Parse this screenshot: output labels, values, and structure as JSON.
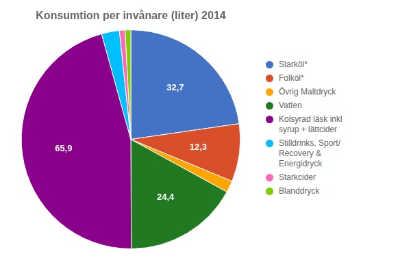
{
  "chart_data": {
    "type": "pie",
    "title": "Konsumtion per invånare (liter) 2014",
    "categories": [
      "Starköl*",
      "Folköl*",
      "Övrig Maltdryck",
      "Vatten",
      "Kolsyrad läsk inkl\nsyrup + lättcider",
      "Stilldrinks, Sport/\nRecovery &\nEnergidryck",
      "Starkcider",
      "Blanddryck"
    ],
    "values": [
      32.7,
      12.3,
      2.5,
      24.4,
      65.9,
      3.8,
      1.2,
      1.2
    ],
    "value_labels": [
      "32,7",
      "12,3",
      null,
      "24,4",
      "65,9",
      null,
      null,
      null
    ],
    "colors": [
      "#4472C4",
      "#D94F2A",
      "#FFA500",
      "#217A21",
      "#8B008B",
      "#00BFFF",
      "#FF69B4",
      "#7CCC00"
    ],
    "data_labels": true,
    "legend": "right"
  }
}
